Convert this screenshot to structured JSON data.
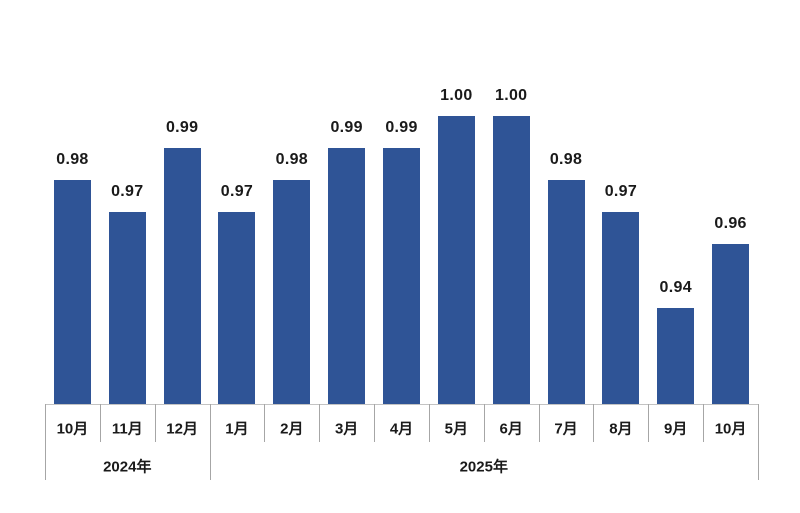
{
  "chart_data": {
    "type": "bar",
    "categories": [
      "10月",
      "11月",
      "12月",
      "1月",
      "2月",
      "3月",
      "4月",
      "5月",
      "6月",
      "7月",
      "8月",
      "9月",
      "10月"
    ],
    "values": [
      0.98,
      0.97,
      0.99,
      0.97,
      0.98,
      0.99,
      0.99,
      1.0,
      1.0,
      0.98,
      0.97,
      0.94,
      0.96
    ],
    "data_labels": [
      "0.98",
      "0.97",
      "0.99",
      "0.97",
      "0.98",
      "0.99",
      "0.99",
      "1.00",
      "1.00",
      "0.98",
      "0.97",
      "0.94",
      "0.96"
    ],
    "year_groups": [
      {
        "label": "2024年",
        "span": 3
      },
      {
        "label": "2025年",
        "span": 10
      }
    ],
    "title": "",
    "xlabel": "",
    "ylabel": "",
    "ylim": [
      0.91,
      1.0
    ],
    "grid": false,
    "legend": false,
    "data_labels_shown": true,
    "colors": {
      "bar": "#2F5496",
      "value_label": "#1a1a1a",
      "month_label": "#1a1a1a",
      "year_label": "#1a1a1a",
      "axis_line": "#c3c3c3",
      "tick_line": "#a6a6a6",
      "background": "#ffffff"
    }
  }
}
